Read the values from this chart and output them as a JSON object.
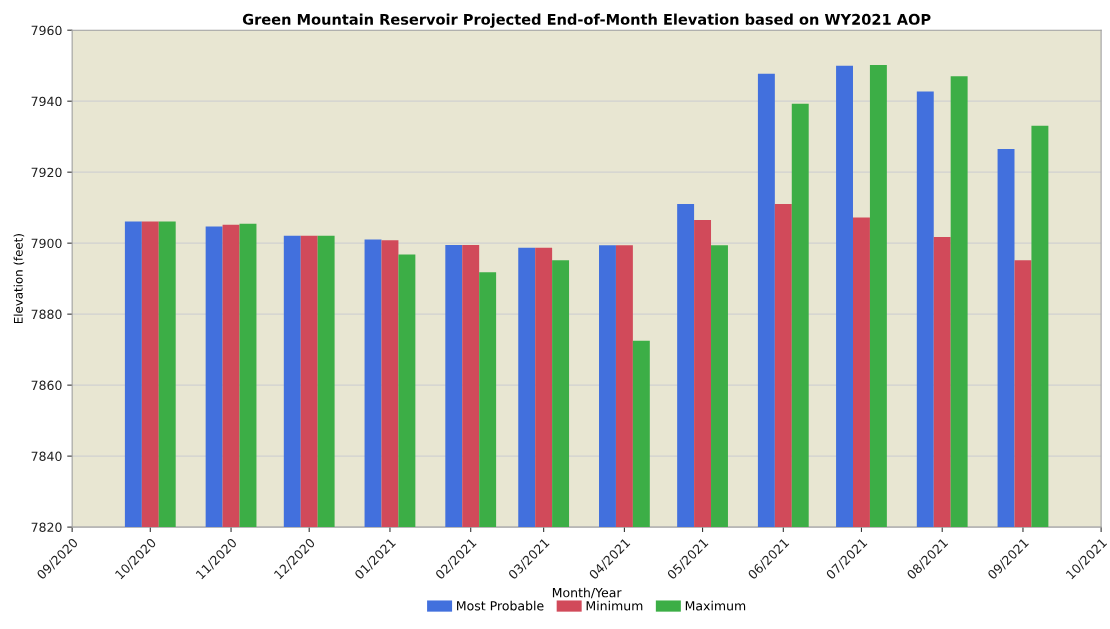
{
  "chart_data": {
    "type": "bar",
    "title": "Green Mountain Reservoir Projected End-of-Month Elevation based on WY2021 AOP",
    "xlabel": "Month/Year",
    "ylabel": "Elevation (feet)",
    "x": [
      "2020-10",
      "2020-11",
      "2020-12",
      "2021-01",
      "2021-02",
      "2021-03",
      "2021-04",
      "2021-05",
      "2021-06",
      "2021-07",
      "2021-08",
      "2021-09"
    ],
    "series": [
      {
        "name": "Most Probable",
        "color": "#4270dd",
        "values": [
          7906.1,
          7904.7,
          7902.1,
          7901.0,
          7899.5,
          7898.7,
          7899.4,
          7911.0,
          7947.7,
          7950.0,
          7942.7,
          7926.5
        ]
      },
      {
        "name": "Minimum",
        "color": "#d14a5a",
        "values": [
          7906.1,
          7905.2,
          7902.1,
          7900.8,
          7899.5,
          7898.7,
          7899.4,
          7906.5,
          7911.0,
          7907.2,
          7901.7,
          7895.2
        ]
      },
      {
        "name": "Maximum",
        "color": "#3cae46",
        "values": [
          7906.1,
          7905.5,
          7902.1,
          7896.8,
          7891.8,
          7895.2,
          7872.5,
          7899.4,
          7939.3,
          7950.2,
          7947.0,
          7933.1
        ]
      }
    ],
    "xlim": [
      "2020-09",
      "2021-10"
    ],
    "xticks": [
      {
        "value": "2020-09",
        "label": "09/2020"
      },
      {
        "value": "2020-10",
        "label": "10/2020"
      },
      {
        "value": "2020-11",
        "label": "11/2020"
      },
      {
        "value": "2020-12",
        "label": "12/2020"
      },
      {
        "value": "2021-01",
        "label": "01/2021"
      },
      {
        "value": "2021-02",
        "label": "02/2021"
      },
      {
        "value": "2021-03",
        "label": "03/2021"
      },
      {
        "value": "2021-04",
        "label": "04/2021"
      },
      {
        "value": "2021-05",
        "label": "05/2021"
      },
      {
        "value": "2021-06",
        "label": "06/2021"
      },
      {
        "value": "2021-07",
        "label": "07/2021"
      },
      {
        "value": "2021-08",
        "label": "08/2021"
      },
      {
        "value": "2021-09",
        "label": "09/2021"
      },
      {
        "value": "2021-10",
        "label": "10/2021"
      }
    ],
    "ylim": [
      7820,
      7960
    ],
    "yticks": [
      7820,
      7840,
      7860,
      7880,
      7900,
      7920,
      7940,
      7960
    ],
    "grid": "y",
    "legend": "bottom"
  }
}
